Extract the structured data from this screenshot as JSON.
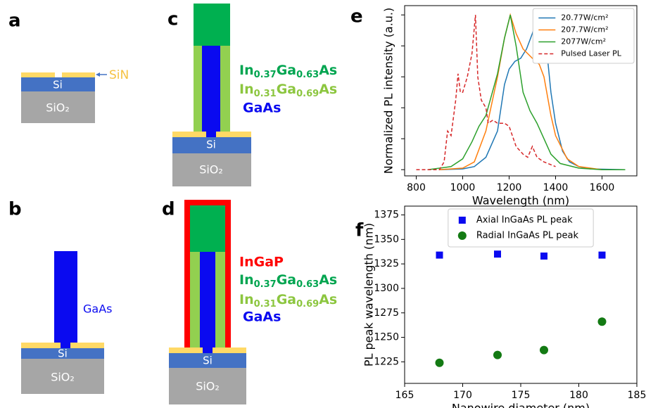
{
  "panels": {
    "a": {
      "label": "a",
      "sin": "SiN",
      "si": "Si",
      "sio2": "SiO₂"
    },
    "b": {
      "label": "b",
      "gaas": "GaAs",
      "si": "Si",
      "sio2": "SiO₂"
    },
    "c": {
      "label": "c",
      "layers": [
        [
          "In",
          "0.37",
          "Ga",
          "0.63",
          "As"
        ],
        [
          "In",
          "0.31",
          "Ga",
          "0.69",
          "As"
        ]
      ],
      "gaas": "GaAs",
      "si": "Si",
      "sio2": "SiO₂"
    },
    "d": {
      "label": "d",
      "ingap": "InGaP",
      "layers": [
        [
          "In",
          "0.37",
          "Ga",
          "0.63",
          "As"
        ],
        [
          "In",
          "0.31",
          "Ga",
          "0.69",
          "As"
        ]
      ],
      "gaas": "GaAs",
      "si": "Si",
      "sio2": "SiO₂"
    },
    "e": {
      "label": "e"
    },
    "f": {
      "label": "f"
    }
  },
  "chart_data": [
    {
      "type": "line",
      "xlabel": "Wavelength (nm)",
      "ylabel": "Normalized PL intensity (a.u.)",
      "xlim": [
        750,
        1750
      ],
      "ylim": [
        -0.04,
        1.06
      ],
      "xticks": [
        800,
        1000,
        1200,
        1400,
        1600
      ],
      "yticks": [
        0,
        0.2,
        0.4,
        0.6,
        0.8,
        1.0
      ],
      "ytick_labels": false,
      "legend": "upper right",
      "series": [
        {
          "name": "20.77W/cm²",
          "color": "#1f77b4",
          "linestyle": "solid",
          "x": [
            900,
            1000,
            1050,
            1100,
            1150,
            1180,
            1200,
            1225,
            1250,
            1275,
            1300,
            1320,
            1330,
            1345,
            1360,
            1380,
            1400,
            1430,
            1460,
            1500,
            1550,
            1700
          ],
          "values": [
            0,
            0.005,
            0.02,
            0.08,
            0.25,
            0.55,
            0.65,
            0.7,
            0.72,
            0.78,
            0.88,
            0.97,
            1.0,
            0.95,
            0.8,
            0.5,
            0.3,
            0.12,
            0.05,
            0.02,
            0.005,
            0
          ]
        },
        {
          "name": "207.7W/cm²",
          "color": "#ff7f0e",
          "linestyle": "solid",
          "x": [
            900,
            1000,
            1050,
            1100,
            1150,
            1180,
            1205,
            1230,
            1260,
            1300,
            1330,
            1350,
            1380,
            1400,
            1450,
            1500,
            1600,
            1700
          ],
          "values": [
            0,
            0.01,
            0.05,
            0.25,
            0.6,
            0.85,
            1.0,
            0.88,
            0.78,
            0.72,
            0.68,
            0.6,
            0.35,
            0.22,
            0.07,
            0.02,
            0,
            0
          ]
        },
        {
          "name": "2077W/cm²",
          "color": "#2ca02c",
          "linestyle": "solid",
          "x": [
            850,
            950,
            1000,
            1040,
            1070,
            1100,
            1150,
            1180,
            1205,
            1230,
            1260,
            1290,
            1320,
            1350,
            1380,
            1420,
            1500,
            1600,
            1700
          ],
          "values": [
            0,
            0.02,
            0.07,
            0.18,
            0.28,
            0.35,
            0.62,
            0.85,
            1.0,
            0.8,
            0.5,
            0.38,
            0.3,
            0.2,
            0.1,
            0.04,
            0.01,
            0,
            0
          ]
        },
        {
          "name": "Pulsed Laser PL",
          "color": "#d62728",
          "linestyle": "dashed",
          "x": [
            800,
            900,
            920,
            935,
            950,
            970,
            980,
            990,
            1000,
            1020,
            1040,
            1055,
            1065,
            1080,
            1100,
            1110,
            1130,
            1150,
            1180,
            1200,
            1230,
            1260,
            1280,
            1300,
            1320,
            1350,
            1400
          ],
          "values": [
            0,
            0,
            0.05,
            0.25,
            0.22,
            0.45,
            0.62,
            0.5,
            0.5,
            0.6,
            0.75,
            1.0,
            0.6,
            0.45,
            0.4,
            0.3,
            0.32,
            0.3,
            0.3,
            0.28,
            0.15,
            0.1,
            0.08,
            0.15,
            0.08,
            0.05,
            0.02
          ]
        }
      ]
    },
    {
      "type": "scatter",
      "xlabel": "Nanowire diameter (nm)",
      "ylabel": "PL peak wavelength (nm)",
      "xlim": [
        165,
        185
      ],
      "ylim": [
        1203,
        1384
      ],
      "xticks": [
        165,
        170,
        175,
        180,
        185
      ],
      "yticks": [
        1225,
        1250,
        1275,
        1300,
        1325,
        1350,
        1375
      ],
      "legend": "upper center",
      "series": [
        {
          "name": "Axial InGaAs PL peak",
          "color": "#0a0af0",
          "marker": "square",
          "x": [
            168,
            173,
            177,
            182
          ],
          "values": [
            1334,
            1335,
            1333,
            1334
          ]
        },
        {
          "name": "Radial InGaAs PL peak",
          "color": "#137a13",
          "marker": "circle",
          "x": [
            168,
            173,
            177,
            182
          ],
          "values": [
            1224,
            1232,
            1237,
            1266
          ]
        }
      ]
    }
  ]
}
